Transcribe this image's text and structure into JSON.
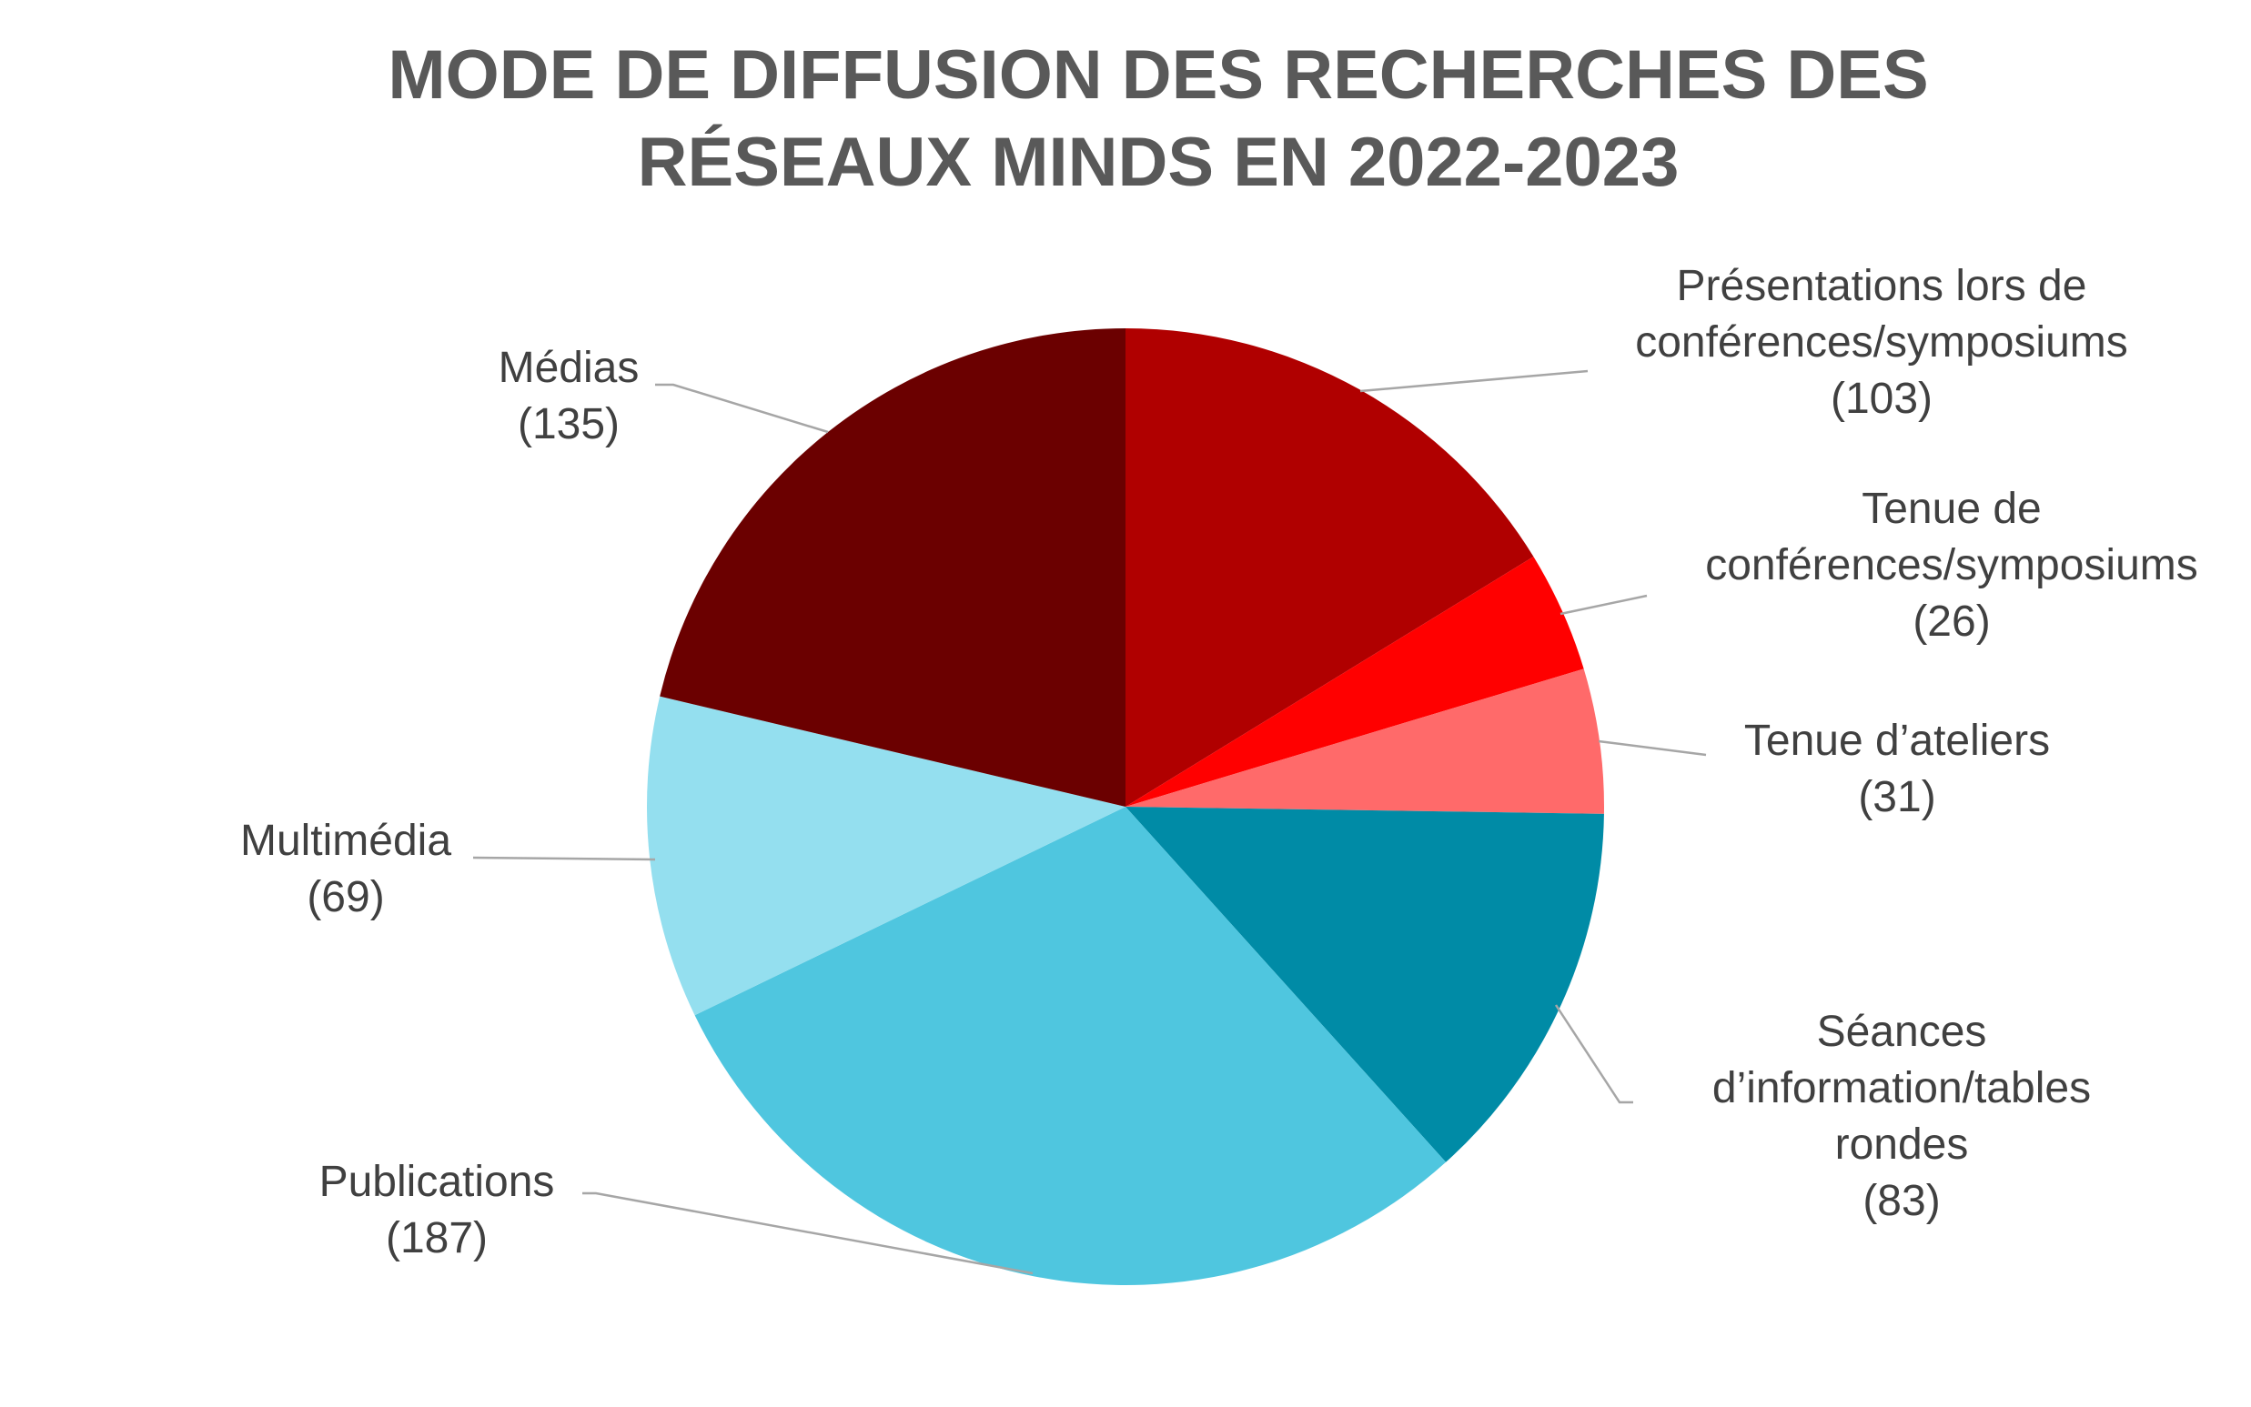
{
  "chart_data": {
    "type": "pie",
    "title": [
      "MODE DE DIFFUSION DES RECHERCHES DES",
      "RÉSEAUX MINDS EN 2022-2023"
    ],
    "slices": [
      {
        "name": [
          "Présentations lors de",
          "conférences/symposiums"
        ],
        "value": 103,
        "value_label": "(103)",
        "color": "#B00000"
      },
      {
        "name": [
          "Tenue de",
          "conférences/symposiums"
        ],
        "value": 26,
        "value_label": "(26)",
        "color": "#FF0000"
      },
      {
        "name": [
          "Tenue d’ateliers"
        ],
        "value": 31,
        "value_label": "(31)",
        "color": "#FF6A6A"
      },
      {
        "name": [
          "Séances",
          "d’information/tables",
          "rondes"
        ],
        "value": 83,
        "value_label": "(83)",
        "color": "#008BA6"
      },
      {
        "name": [
          "Publications"
        ],
        "value": 187,
        "value_label": "(187)",
        "color": "#4FC6DF"
      },
      {
        "name": [
          "Multimédia"
        ],
        "value": 69,
        "value_label": "(69)",
        "color": "#94DFEF"
      },
      {
        "name": [
          "Médias"
        ],
        "value": 135,
        "value_label": "(135)",
        "color": "#6B0000"
      }
    ]
  }
}
